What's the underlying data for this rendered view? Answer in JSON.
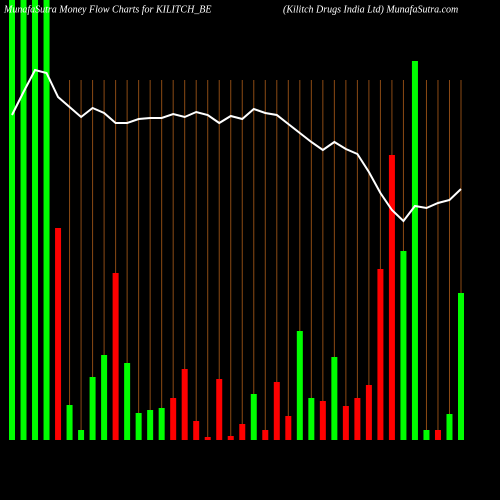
{
  "chart_data": {
    "type": "bar",
    "title": "MunafaSutra  Money Flow  Charts for KILITCH_BE",
    "subtitle": "(Kilitch Drugs India Ltd) MunafaSutra.com",
    "ylim": [
      0,
      440
    ],
    "values": [
      440,
      440,
      440,
      440,
      212,
      35,
      10,
      63,
      85,
      167,
      77,
      27,
      30,
      32,
      42,
      71,
      19,
      3,
      61,
      4,
      16,
      46,
      10,
      58,
      24,
      109,
      42,
      39,
      83,
      34,
      42,
      55,
      171,
      285,
      189,
      379,
      10,
      10,
      26,
      147
    ],
    "colors": [
      "#00ff00",
      "#00ff00",
      "#00ff00",
      "#00ff00",
      "#ff0000",
      "#00ff00",
      "#00ff00",
      "#00ff00",
      "#00ff00",
      "#ff0000",
      "#00ff00",
      "#00ff00",
      "#00ff00",
      "#00ff00",
      "#ff0000",
      "#ff0000",
      "#ff0000",
      "#ff0000",
      "#ff0000",
      "#ff0000",
      "#ff0000",
      "#00ff00",
      "#ff0000",
      "#ff0000",
      "#ff0000",
      "#00ff00",
      "#00ff00",
      "#ff0000",
      "#00ff00",
      "#ff0000",
      "#ff0000",
      "#ff0000",
      "#ff0000",
      "#ff0000",
      "#00ff00",
      "#00ff00",
      "#00ff00",
      "#ff0000",
      "#00ff00",
      "#00ff00"
    ],
    "line": {
      "color": "#ffffff",
      "values": [
        325,
        348,
        370,
        367,
        343,
        333,
        323,
        332,
        327,
        317,
        317,
        321,
        322,
        322,
        326,
        323,
        328,
        325,
        317,
        324,
        321,
        331,
        327,
        325,
        316,
        307,
        298,
        290,
        298,
        291,
        286,
        268,
        247,
        230,
        219,
        234,
        232,
        237,
        240,
        251
      ]
    }
  }
}
